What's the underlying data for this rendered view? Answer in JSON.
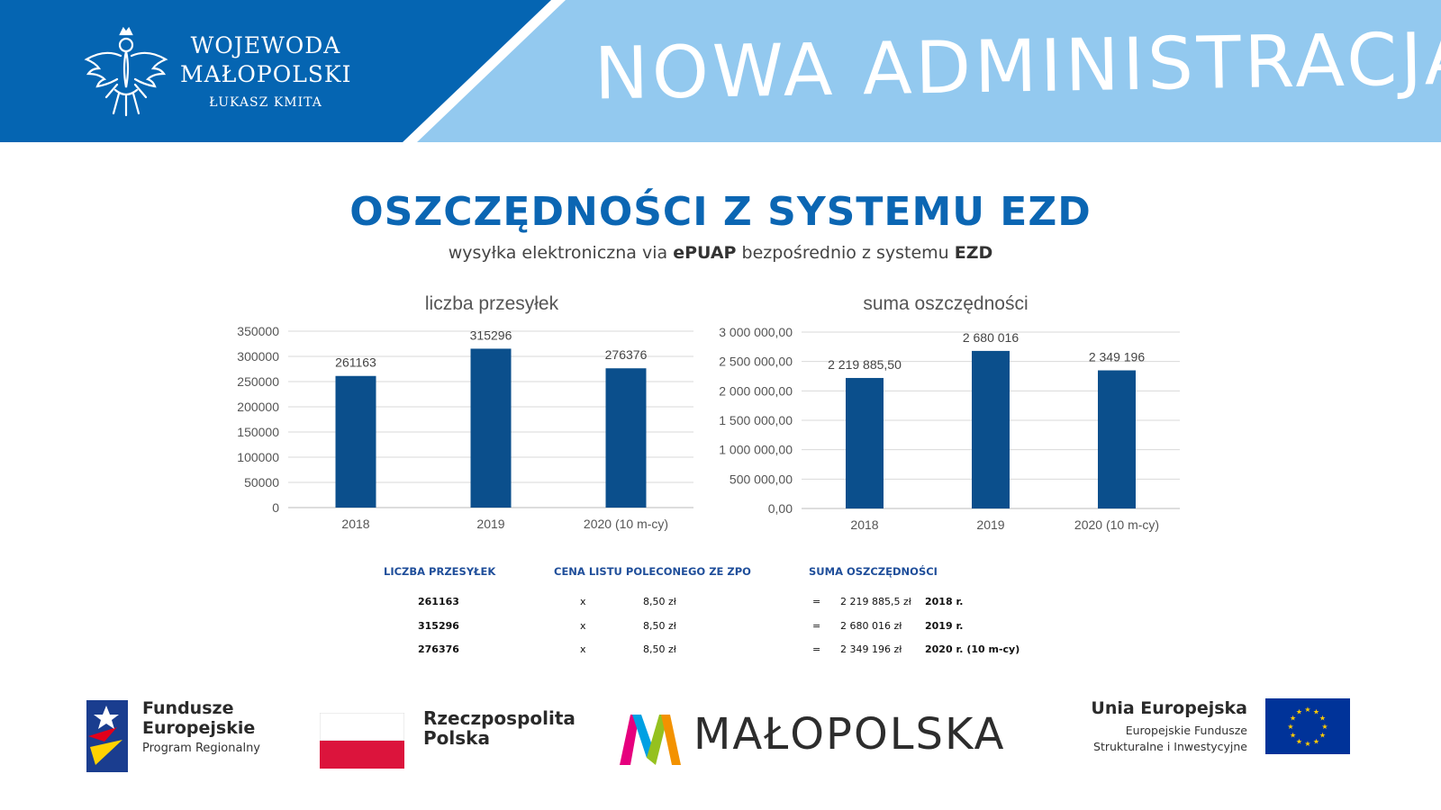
{
  "header": {
    "brand_line1": "WOJEWODA",
    "brand_line2": "MAŁOPOLSKI",
    "brand_line3": "ŁUKASZ KMITA",
    "slogan": "NOWA ADMINISTRACJA",
    "dark_blue": "#0565b2",
    "light_blue": "#93c9ef",
    "eagle_icon": "eagle-emblem-icon"
  },
  "title": "OSZCZĘDNOŚCI Z SYSTEMU EZD",
  "subtitle": {
    "part1": "wysyłka elektroniczna via ",
    "bold1": "ePUAP",
    "part2": " bezpośrednio z systemu ",
    "bold2": "EZD"
  },
  "chart_data": [
    {
      "type": "bar",
      "title": "liczba przesyłek",
      "categories": [
        "2018",
        "2019",
        "2020 (10 m-cy)"
      ],
      "values": [
        261163,
        315296,
        276376
      ],
      "value_labels": [
        "261163",
        "315296",
        "276376"
      ],
      "yticks": [
        "0",
        "50000",
        "100000",
        "150000",
        "200000",
        "250000",
        "300000",
        "350000"
      ],
      "ylim": [
        0,
        350000
      ],
      "grid": true,
      "color": "#0b4f8c"
    },
    {
      "type": "bar",
      "title": "suma oszczędności",
      "categories": [
        "2018",
        "2019",
        "2020 (10 m-cy)"
      ],
      "values": [
        2219885.5,
        2680016,
        2349196
      ],
      "value_labels": [
        "2 219 885,50",
        "2 680 016",
        "2 349 196"
      ],
      "yticks": [
        "0,00",
        "500 000,00",
        "1 000 000,00",
        "1 500 000,00",
        "2 000 000,00",
        "2 500 000,00",
        "3 000 000,00"
      ],
      "ylim": [
        0,
        3000000
      ],
      "grid": true,
      "color": "#0b4f8c"
    }
  ],
  "table": {
    "headers": [
      "LICZBA PRZESYŁEK",
      "CENA LISTU POLECONEGO ZE ZPO",
      "SUMA OSZCZĘDNOŚCI"
    ],
    "rows": [
      {
        "count": "261163",
        "x": "x",
        "price": "8,50 zł",
        "eq": "=",
        "sum": "2 219 885,5 zł",
        "year": "2018 r.",
        "note": ""
      },
      {
        "count": "315296",
        "x": "x",
        "price": "8,50 zł",
        "eq": "=",
        "sum": "2 680 016 zł",
        "year": "2019 r.",
        "note": ""
      },
      {
        "count": "276376",
        "x": "x",
        "price": "8,50 zł",
        "eq": "=",
        "sum": "2 349 196 zł",
        "year": "2020 r.",
        "note": "(10 m-cy)"
      }
    ]
  },
  "footer": {
    "fe_line1": "Fundusze",
    "fe_line2": "Europejskie",
    "fe_line3": "Program Regionalny",
    "rp_line1": "Rzeczpospolita",
    "rp_line2": "Polska",
    "mp_name": "MAŁOPOLSKA",
    "ue_line1": "Unia Europejska",
    "ue_line2": "Europejskie Fundusze",
    "ue_line3": "Strukturalne i Inwestycyjne"
  }
}
